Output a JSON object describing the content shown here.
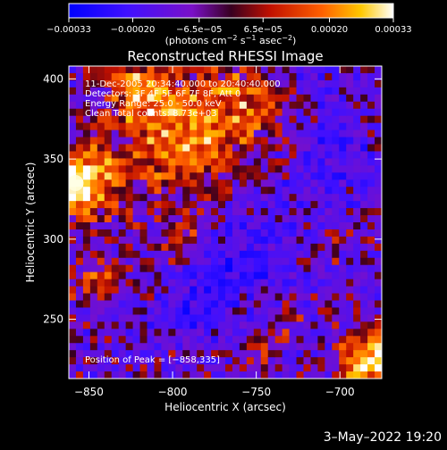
{
  "chart_data": {
    "type": "heatmap",
    "title": "Reconstructed RHESSI Image",
    "xlabel": "Heliocentric X (arcsec)",
    "ylabel": "Heliocentric Y (arcsec)",
    "xlim": [
      -862,
      -675
    ],
    "ylim": [
      213,
      408
    ],
    "x_ticks": [
      -850,
      -800,
      -750,
      -700
    ],
    "x_tick_labels": [
      "−850",
      "−800",
      "−750",
      "−700"
    ],
    "y_ticks": [
      250,
      300,
      350,
      400
    ],
    "y_tick_labels": [
      "250",
      "300",
      "350",
      "400"
    ],
    "colorbar": {
      "range": [
        -0.00033,
        0.00033
      ],
      "ticks": [
        -0.00033,
        -0.0002,
        -6.5e-05,
        6.5e-05,
        0.0002,
        0.00033
      ],
      "tick_labels": [
        "−0.00033",
        "−0.00020",
        "−6.5e−05",
        "6.5e−05",
        "0.00020",
        "0.00033"
      ],
      "units_label": "(photons cm",
      "units_exp1": "−2",
      "units_mid": " s",
      "units_exp2": "−1",
      "units_mid2": " asec",
      "units_exp3": "−2",
      "units_end": ")"
    },
    "annotations": [
      "11-Dec-2005 20:34:40.000 to 20:40:40.000",
      "Detectors: 3F 4F 5F 6F 7F 8F, Att 0",
      "Energy Range: 25.0 - 50.0 keV",
      "Clean     Total counts: 8.73e+03"
    ],
    "peak_label": "Position of Peak = [−858,335]",
    "peak": [
      -858,
      335
    ]
  },
  "footer": {
    "timestamp": "3–May–2022 19:20"
  }
}
